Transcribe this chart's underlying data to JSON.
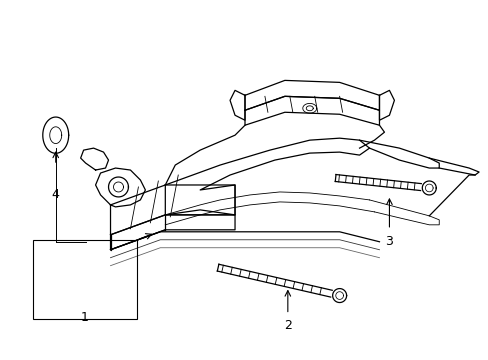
{
  "bg_color": "#ffffff",
  "line_color": "#000000",
  "fig_width": 4.89,
  "fig_height": 3.6,
  "dpi": 100,
  "label_fontsize": 9
}
